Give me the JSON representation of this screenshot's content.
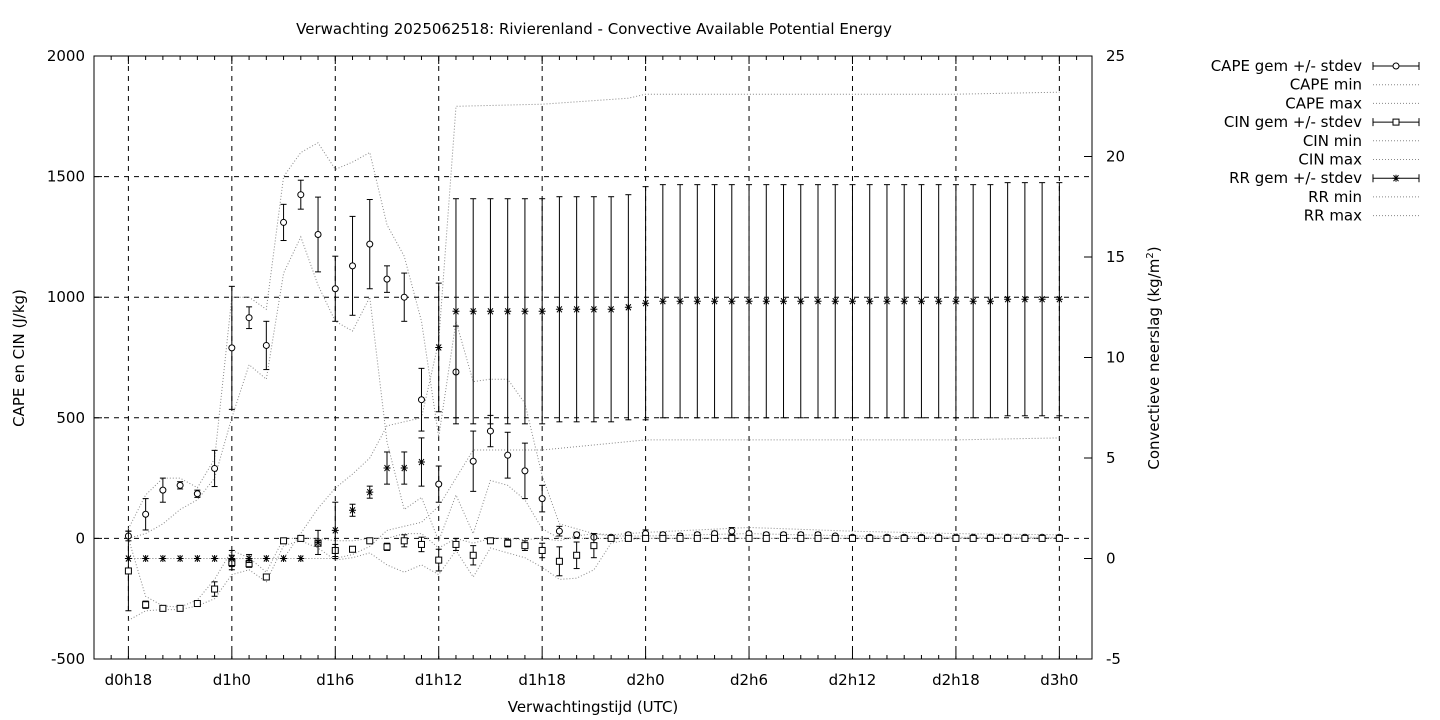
{
  "chart_data": {
    "type": "line",
    "title": "Verwachting 2025062518: Rivierenland - Convective Available Potential Energy",
    "xlabel": "Verwachtingstijd (UTC)",
    "ylabel": "CAPE en CIN (J/kg)",
    "y2label_main": "Convectieve neerslag (kg/m",
    "y2label_sup": "2",
    "y2label_end": ")",
    "x_unit": "hours since d0h0",
    "xlim": [
      17,
      75
    ],
    "ylim": [
      -500,
      2000
    ],
    "y2lim": [
      -5,
      25
    ],
    "grid": true,
    "legend_position": "right, outside plot",
    "x_ticks": [
      {
        "value": 18,
        "label": "d0h18"
      },
      {
        "value": 24,
        "label": "d1h0"
      },
      {
        "value": 30,
        "label": "d1h6"
      },
      {
        "value": 36,
        "label": "d1h12"
      },
      {
        "value": 42,
        "label": "d1h18"
      },
      {
        "value": 48,
        "label": "d2h0"
      },
      {
        "value": 54,
        "label": "d2h6"
      },
      {
        "value": 60,
        "label": "d2h12"
      },
      {
        "value": 66,
        "label": "d2h18"
      },
      {
        "value": 72,
        "label": "d3h0"
      }
    ],
    "y_ticks": [
      "-500",
      "0",
      "500",
      "1000",
      "1500",
      "2000"
    ],
    "y2_ticks": [
      "-5",
      "0",
      "5",
      "10",
      "15",
      "20",
      "25"
    ],
    "series": [
      {
        "name": "CAPE gem +/- stdev",
        "axis": "y1",
        "marker": "circle",
        "x": [
          18,
          19,
          20,
          21,
          22,
          23,
          24,
          25,
          26,
          27,
          28,
          29,
          30,
          31,
          32,
          33,
          34,
          35,
          36,
          37,
          38,
          39,
          40,
          41,
          42,
          43,
          44,
          45,
          46,
          47,
          48,
          49,
          50,
          51,
          52,
          53,
          54,
          55,
          56,
          57,
          58,
          59,
          60,
          61,
          62,
          63,
          64,
          65,
          66,
          67,
          68,
          69,
          70,
          71,
          72
        ],
        "values": [
          10,
          100,
          200,
          220,
          185,
          290,
          790,
          915,
          800,
          1310,
          1425,
          1260,
          1035,
          1130,
          1220,
          1075,
          1000,
          575,
          225,
          690,
          320,
          445,
          345,
          280,
          165,
          30,
          15,
          5,
          5,
          15,
          20,
          15,
          10,
          15,
          20,
          30,
          20,
          15,
          15,
          15,
          15,
          10,
          5,
          5,
          5,
          5,
          5,
          5,
          5,
          5,
          5,
          5,
          5,
          5,
          5
        ],
        "stdev": [
          20,
          65,
          50,
          15,
          15,
          75,
          255,
          45,
          100,
          75,
          60,
          155,
          135,
          205,
          185,
          55,
          100,
          130,
          75,
          190,
          125,
          65,
          95,
          115,
          55,
          20,
          10,
          5,
          5,
          10,
          15,
          10,
          10,
          10,
          10,
          15,
          10,
          10,
          10,
          10,
          10,
          5,
          5,
          5,
          5,
          5,
          5,
          5,
          5,
          5,
          5,
          5,
          5,
          5,
          5
        ]
      },
      {
        "name": "CAPE min",
        "axis": "y1",
        "style": "dotted",
        "x": [
          18,
          19,
          20,
          21,
          22,
          23,
          24,
          25,
          26,
          27,
          28,
          29,
          30,
          31,
          32,
          33,
          34,
          35,
          36,
          37,
          38,
          39,
          40,
          41,
          42,
          43,
          44,
          45,
          46,
          47,
          48,
          54,
          60,
          66,
          72
        ],
        "values": [
          0,
          20,
          60,
          120,
          160,
          250,
          500,
          720,
          660,
          1100,
          1250,
          1050,
          900,
          860,
          1000,
          400,
          120,
          170,
          -10,
          180,
          20,
          240,
          220,
          160,
          40,
          0,
          0,
          0,
          0,
          0,
          0,
          0,
          0,
          0,
          0
        ]
      },
      {
        "name": "CAPE max",
        "axis": "y1",
        "style": "dotted",
        "x": [
          18,
          19,
          20,
          21,
          22,
          23,
          24,
          25,
          26,
          27,
          28,
          29,
          30,
          31,
          32,
          33,
          34,
          35,
          36,
          37,
          38,
          39,
          40,
          41,
          42,
          43,
          44,
          45,
          46,
          47,
          48,
          54,
          60,
          66,
          72
        ],
        "values": [
          40,
          180,
          250,
          250,
          210,
          330,
          1000,
          1000,
          950,
          1500,
          1600,
          1640,
          1530,
          1560,
          1600,
          1300,
          1170,
          900,
          420,
          900,
          650,
          660,
          660,
          560,
          260,
          60,
          40,
          20,
          15,
          20,
          25,
          45,
          30,
          20,
          15
        ]
      },
      {
        "name": "CIN gem +/- stdev",
        "axis": "y1",
        "marker": "square",
        "x": [
          18,
          19,
          20,
          21,
          22,
          23,
          24,
          25,
          26,
          27,
          28,
          29,
          30,
          31,
          32,
          33,
          34,
          35,
          36,
          37,
          38,
          39,
          40,
          41,
          42,
          43,
          44,
          45,
          46,
          47,
          48,
          49,
          50,
          51,
          52,
          53,
          54,
          55,
          56,
          57,
          58,
          59,
          60,
          61,
          62,
          63,
          64,
          65,
          66,
          67,
          68,
          69,
          70,
          71,
          72
        ],
        "values": [
          -135,
          -275,
          -290,
          -290,
          -270,
          -210,
          -100,
          -105,
          -160,
          -10,
          0,
          -20,
          -50,
          -45,
          -10,
          -35,
          -10,
          -25,
          -90,
          -25,
          -70,
          -10,
          -20,
          -30,
          -50,
          -95,
          -70,
          -30,
          0,
          0,
          0,
          0,
          0,
          0,
          0,
          0,
          0,
          0,
          0,
          0,
          0,
          0,
          0,
          0,
          0,
          0,
          0,
          0,
          0,
          0,
          0,
          0,
          0,
          0,
          0
        ],
        "stdev": [
          165,
          15,
          5,
          5,
          10,
          30,
          30,
          15,
          10,
          10,
          5,
          5,
          25,
          10,
          10,
          15,
          25,
          30,
          45,
          25,
          40,
          10,
          15,
          20,
          30,
          60,
          55,
          50,
          5,
          5,
          5,
          5,
          5,
          5,
          5,
          5,
          5,
          5,
          5,
          5,
          5,
          5,
          5,
          5,
          5,
          5,
          5,
          5,
          5,
          5,
          5,
          5,
          5,
          5,
          5
        ]
      },
      {
        "name": "CIN min",
        "axis": "y1",
        "style": "dotted",
        "x": [
          18,
          19,
          20,
          21,
          22,
          23,
          24,
          25,
          26,
          27,
          28,
          29,
          30,
          31,
          32,
          33,
          34,
          35,
          36,
          37,
          38,
          39,
          40,
          41,
          42,
          43,
          44,
          45,
          46,
          47,
          48,
          54,
          60,
          66,
          72
        ],
        "values": [
          -340,
          -300,
          -295,
          -295,
          -280,
          -250,
          -150,
          -130,
          -180,
          -30,
          -10,
          -40,
          -90,
          -80,
          -60,
          -110,
          -140,
          -110,
          -150,
          -50,
          -160,
          -40,
          -60,
          -80,
          -120,
          -170,
          -165,
          -130,
          -20,
          -5,
          0,
          0,
          0,
          0,
          0
        ]
      },
      {
        "name": "CIN max",
        "axis": "y1",
        "style": "dotted",
        "x": [
          18,
          19,
          20,
          21,
          22,
          23,
          24,
          25,
          26,
          27,
          28,
          29,
          30,
          31,
          32,
          33,
          34,
          35,
          36,
          37,
          38,
          39,
          40,
          41,
          42,
          43,
          44,
          45,
          46,
          47,
          48,
          54,
          60,
          66,
          72
        ],
        "values": [
          0,
          -240,
          -280,
          -285,
          -255,
          -170,
          -50,
          -80,
          -140,
          0,
          0,
          0,
          -10,
          -10,
          0,
          0,
          20,
          20,
          -40,
          0,
          -20,
          0,
          0,
          -5,
          0,
          -10,
          10,
          20,
          10,
          10,
          10,
          20,
          10,
          5,
          5
        ]
      },
      {
        "name": "RR gem +/- stdev",
        "axis": "y2",
        "marker": "star",
        "x": [
          18,
          19,
          20,
          21,
          22,
          23,
          24,
          25,
          26,
          27,
          28,
          29,
          30,
          31,
          32,
          33,
          34,
          35,
          36,
          37,
          38,
          39,
          40,
          41,
          42,
          43,
          44,
          45,
          46,
          47,
          48,
          49,
          50,
          51,
          52,
          53,
          54,
          55,
          56,
          57,
          58,
          59,
          60,
          61,
          62,
          63,
          64,
          65,
          66,
          67,
          68,
          69,
          70,
          71,
          72
        ],
        "values": [
          0,
          0,
          0,
          0,
          0,
          0,
          0,
          0,
          0,
          0,
          0,
          0.8,
          1.4,
          2.4,
          3.3,
          4.5,
          4.5,
          4.8,
          10.5,
          12.3,
          12.3,
          12.3,
          12.3,
          12.3,
          12.3,
          12.4,
          12.4,
          12.4,
          12.4,
          12.5,
          12.7,
          12.8,
          12.8,
          12.8,
          12.8,
          12.8,
          12.8,
          12.8,
          12.8,
          12.8,
          12.8,
          12.8,
          12.8,
          12.8,
          12.8,
          12.8,
          12.8,
          12.8,
          12.8,
          12.8,
          12.8,
          12.9,
          12.9,
          12.9,
          12.9
        ],
        "stdev": [
          0,
          0,
          0,
          0,
          0,
          0,
          0.4,
          0.2,
          0,
          0,
          0,
          0.6,
          1.4,
          0.3,
          0.3,
          0.8,
          0.8,
          1.2,
          3.2,
          5.6,
          5.6,
          5.6,
          5.6,
          5.6,
          5.6,
          5.6,
          5.6,
          5.6,
          5.6,
          5.6,
          5.8,
          5.8,
          5.8,
          5.8,
          5.8,
          5.8,
          5.8,
          5.8,
          5.8,
          5.8,
          5.8,
          5.8,
          5.8,
          5.8,
          5.8,
          5.8,
          5.8,
          5.8,
          5.8,
          5.8,
          5.8,
          5.8,
          5.8,
          5.8,
          5.8
        ]
      },
      {
        "name": "RR min",
        "axis": "y2",
        "style": "dotted",
        "x": [
          18,
          24,
          27,
          29,
          30,
          31,
          32,
          33,
          34,
          35,
          36,
          38,
          42,
          48,
          54,
          60,
          66,
          72
        ],
        "values": [
          0,
          0,
          0,
          0,
          0,
          0.2,
          0.6,
          1.4,
          1.6,
          1.8,
          2.6,
          5.4,
          5.4,
          5.9,
          5.9,
          5.9,
          5.9,
          6.0
        ]
      },
      {
        "name": "RR max",
        "axis": "y2",
        "style": "dotted",
        "x": [
          18,
          24,
          27,
          29,
          30,
          31,
          32,
          33,
          34,
          35,
          36,
          37,
          42,
          47,
          48,
          54,
          60,
          66,
          72
        ],
        "values": [
          0,
          0,
          0,
          2.5,
          3.5,
          4.2,
          5.0,
          6.6,
          6.8,
          7.0,
          10.8,
          22.5,
          22.6,
          22.9,
          23.1,
          23.1,
          23.1,
          23.1,
          23.2
        ]
      }
    ]
  }
}
